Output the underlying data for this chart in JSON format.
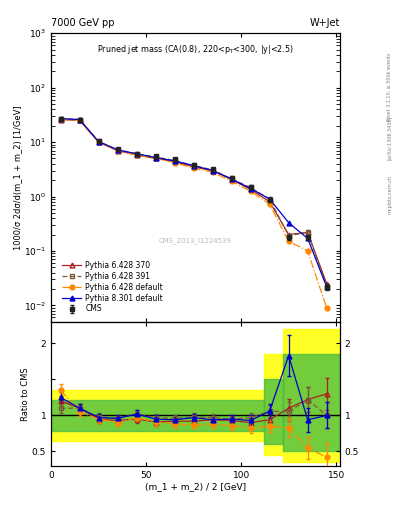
{
  "title_left": "7000 GeV pp",
  "title_right": "W+Jet",
  "plot_title": "Pruned jet mass (CA(0.8), 220<p_{T}<300, |y|<2.5)",
  "xlabel": "(m_1 + m_2) / 2 [GeV]",
  "ylabel_main": "1000/σ 2dσ/d(m_1 + m_2) [1/GeV]",
  "ylabel_ratio": "Ratio to CMS",
  "watermark": "CMS_2013_I1224539",
  "rivet_label": "Rivet 3.1.10, ≥ 500k events",
  "arxiv_label": "[arXiv:1306.3436]",
  "mcplots_label": "mcplots.cern.ch",
  "x_vals": [
    5,
    15,
    25,
    35,
    45,
    55,
    65,
    75,
    85,
    95,
    105,
    115,
    125,
    135,
    145
  ],
  "cms_y": [
    27,
    26,
    10.5,
    7.5,
    6.0,
    5.5,
    4.8,
    3.8,
    3.2,
    2.2,
    1.5,
    0.85,
    0.18,
    0.18,
    0.022
  ],
  "cms_yerr": [
    1.5,
    1.5,
    0.6,
    0.4,
    0.4,
    0.35,
    0.3,
    0.25,
    0.2,
    0.15,
    0.1,
    0.07,
    0.02,
    0.02,
    0.003
  ],
  "py6_370_y": [
    26,
    25,
    10.0,
    7.0,
    5.8,
    5.0,
    4.4,
    3.5,
    3.0,
    2.05,
    1.35,
    0.8,
    0.2,
    0.22,
    0.025
  ],
  "py6_391_y": [
    27,
    26,
    10.3,
    7.2,
    6.1,
    5.3,
    4.6,
    3.7,
    3.1,
    2.1,
    1.45,
    0.9,
    0.19,
    0.22,
    0.022
  ],
  "py6_def_y": [
    26,
    25,
    10.0,
    6.8,
    5.8,
    5.0,
    4.2,
    3.3,
    2.8,
    1.9,
    1.25,
    0.72,
    0.15,
    0.1,
    0.009
  ],
  "py8_def_y": [
    27,
    26,
    10.2,
    7.2,
    6.1,
    5.2,
    4.5,
    3.7,
    3.0,
    2.1,
    1.4,
    0.9,
    0.33,
    0.17,
    0.022
  ],
  "ratio_py6_370": [
    1.2,
    1.1,
    0.95,
    0.93,
    0.95,
    0.91,
    0.92,
    0.92,
    0.94,
    0.93,
    0.9,
    0.94,
    1.1,
    1.22,
    1.3
  ],
  "ratio_py6_391": [
    1.1,
    1.1,
    0.98,
    0.96,
    1.02,
    0.97,
    0.96,
    0.98,
    0.97,
    0.95,
    0.97,
    1.06,
    1.05,
    1.22,
    1.0
  ],
  "ratio_py6_def": [
    1.35,
    1.05,
    0.95,
    0.9,
    0.97,
    0.91,
    0.88,
    0.87,
    0.88,
    0.86,
    0.83,
    0.85,
    0.83,
    0.55,
    0.42
  ],
  "ratio_py8_def": [
    1.25,
    1.1,
    0.97,
    0.96,
    1.02,
    0.95,
    0.94,
    0.97,
    0.94,
    0.95,
    0.93,
    1.06,
    1.83,
    0.94,
    1.0
  ],
  "ratio_py6_370_err": [
    0.07,
    0.06,
    0.05,
    0.05,
    0.05,
    0.05,
    0.05,
    0.05,
    0.05,
    0.06,
    0.07,
    0.08,
    0.13,
    0.17,
    0.22
  ],
  "ratio_py6_391_err": [
    0.07,
    0.06,
    0.05,
    0.05,
    0.05,
    0.05,
    0.05,
    0.05,
    0.05,
    0.06,
    0.07,
    0.08,
    0.13,
    0.17,
    0.18
  ],
  "ratio_py6_def_err": [
    0.08,
    0.06,
    0.05,
    0.05,
    0.05,
    0.05,
    0.05,
    0.05,
    0.05,
    0.06,
    0.07,
    0.08,
    0.13,
    0.15,
    0.2
  ],
  "ratio_py8_def_err": [
    0.07,
    0.06,
    0.05,
    0.05,
    0.05,
    0.05,
    0.05,
    0.05,
    0.05,
    0.06,
    0.07,
    0.1,
    0.28,
    0.17,
    0.18
  ],
  "color_py6_370": "#aa2222",
  "color_py6_391": "#7b5a3a",
  "color_py6_def": "#ff8800",
  "color_py8_def": "#0000cc",
  "color_cms": "#222222",
  "ylim_main": [
    0.005,
    1000
  ],
  "ylim_ratio": [
    0.3,
    2.3
  ],
  "xlim": [
    0,
    152
  ]
}
